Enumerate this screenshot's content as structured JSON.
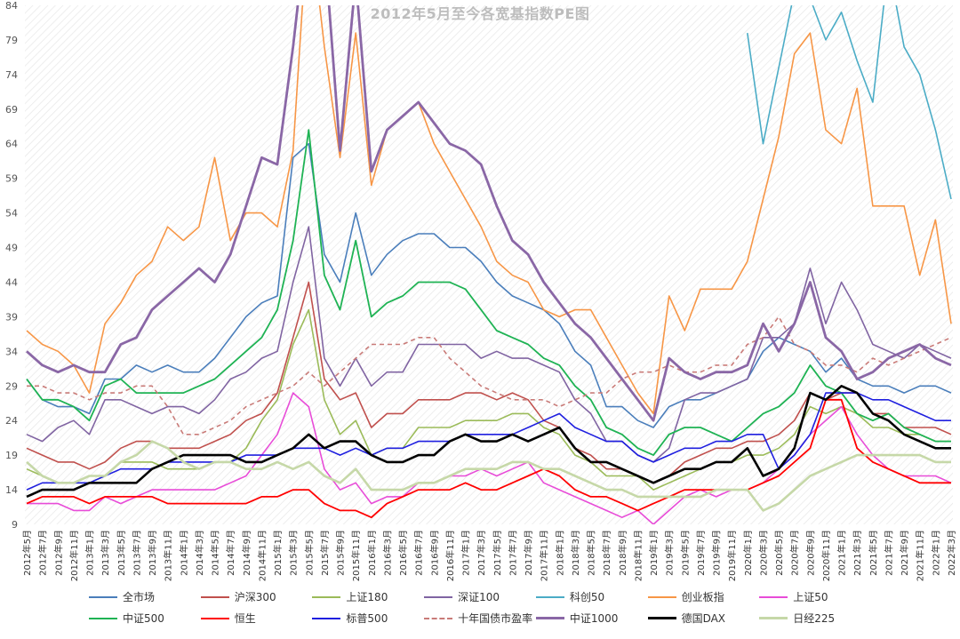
{
  "chart_data": {
    "type": "line",
    "title": "2012年5月至今各宽基指数PE图",
    "xlabel": "",
    "ylabel": "",
    "ylim": [
      9,
      84
    ],
    "yticks": [
      9,
      14,
      19,
      24,
      29,
      34,
      39,
      44,
      49,
      54,
      59,
      64,
      69,
      74,
      79,
      84
    ],
    "grid": "diagonal-hatch",
    "legend_position": "bottom",
    "x": [
      "2012年5月",
      "2012年7月",
      "2012年9月",
      "2012年11月",
      "2013年1月",
      "2013年3月",
      "2013年5月",
      "2013年7月",
      "2013年9月",
      "2013年11月",
      "2014年1月",
      "2014年3月",
      "2014年5月",
      "2014年7月",
      "2014年9月",
      "2014年11月",
      "2015年1月",
      "2015年3月",
      "2015年5月",
      "2015年7月",
      "2015年9月",
      "2015年11月",
      "2016年1月",
      "2016年3月",
      "2016年5月",
      "2016年7月",
      "2016年9月",
      "2016年11月",
      "2017年1月",
      "2017年3月",
      "2017年5月",
      "2017年7月",
      "2017年9月",
      "2017年11月",
      "2018年1月",
      "2018年3月",
      "2018年5月",
      "2018年7月",
      "2018年9月",
      "2018年11月",
      "2019年1月",
      "2019年3月",
      "2019年5月",
      "2019年7月",
      "2019年9月",
      "2019年11月",
      "2020年1月",
      "2020年3月",
      "2020年5月",
      "2020年7月",
      "2020年9月",
      "2020年11月",
      "2021年1月",
      "2021年3月",
      "2021年5月",
      "2021年7月",
      "2021年9月",
      "2021年11月",
      "2022年1月",
      "2022年3月"
    ],
    "series": [
      {
        "name": "全市场",
        "color": "#4a7ebb",
        "width": 1.6,
        "dash": "",
        "values": [
          30,
          27,
          26,
          26,
          25,
          30,
          30,
          32,
          31,
          32,
          31,
          31,
          33,
          36,
          39,
          41,
          42,
          62,
          64,
          48,
          44,
          54,
          45,
          48,
          50,
          51,
          51,
          49,
          49,
          47,
          44,
          42,
          41,
          40,
          38,
          34,
          32,
          26,
          26,
          24,
          23,
          26,
          27,
          27,
          28,
          29,
          30,
          34,
          36,
          35,
          34,
          31,
          33,
          30,
          29,
          29,
          28,
          29,
          29,
          28
        ]
      },
      {
        "name": "沪深300",
        "color": "#c0504d",
        "width": 1.6,
        "dash": "",
        "values": [
          20,
          19,
          18,
          18,
          17,
          18,
          20,
          21,
          21,
          20,
          20,
          20,
          21,
          22,
          24,
          25,
          28,
          36,
          44,
          30,
          27,
          28,
          23,
          25,
          25,
          27,
          27,
          27,
          28,
          28,
          27,
          28,
          27,
          24,
          23,
          20,
          19,
          17,
          17,
          16,
          15,
          16,
          18,
          19,
          20,
          20,
          21,
          21,
          22,
          24,
          28,
          27,
          28,
          28,
          25,
          25,
          23,
          23,
          23,
          22
        ]
      },
      {
        "name": "上证180",
        "color": "#9bbb59",
        "width": 1.6,
        "dash": "",
        "values": [
          17,
          16,
          15,
          15,
          15,
          16,
          18,
          18,
          18,
          17,
          17,
          17,
          18,
          18,
          20,
          24,
          27,
          35,
          40,
          27,
          22,
          24,
          19,
          20,
          20,
          23,
          23,
          23,
          24,
          24,
          24,
          25,
          25,
          23,
          22,
          19,
          18,
          16,
          16,
          16,
          14,
          15,
          16,
          17,
          18,
          18,
          19,
          19,
          20,
          22,
          26,
          25,
          26,
          25,
          23,
          23,
          22,
          22,
          21,
          21
        ]
      },
      {
        "name": "深证100",
        "color": "#8064a2",
        "width": 1.6,
        "dash": "",
        "values": [
          22,
          21,
          23,
          24,
          22,
          27,
          27,
          26,
          25,
          26,
          26,
          25,
          27,
          30,
          31,
          33,
          34,
          44,
          52,
          33,
          29,
          33,
          29,
          31,
          31,
          35,
          35,
          35,
          35,
          33,
          34,
          33,
          33,
          32,
          31,
          27,
          25,
          21,
          21,
          19,
          18,
          20,
          27,
          28,
          28,
          29,
          30,
          36,
          36,
          38,
          46,
          38,
          44,
          40,
          35,
          34,
          33,
          35,
          34,
          33
        ]
      },
      {
        "name": "科创50",
        "color": "#4bacc6",
        "width": 1.6,
        "dash": "",
        "values": [
          null,
          null,
          null,
          null,
          null,
          null,
          null,
          null,
          null,
          null,
          null,
          null,
          null,
          null,
          null,
          null,
          null,
          null,
          null,
          null,
          null,
          null,
          null,
          null,
          null,
          null,
          null,
          null,
          null,
          null,
          null,
          null,
          null,
          null,
          null,
          null,
          null,
          null,
          null,
          null,
          null,
          null,
          null,
          null,
          null,
          null,
          80,
          64,
          75,
          86,
          85,
          79,
          83,
          76,
          70,
          90,
          78,
          74,
          66,
          56
        ]
      },
      {
        "name": "创业板指",
        "color": "#f79646",
        "width": 1.6,
        "dash": "",
        "values": [
          37,
          35,
          34,
          32,
          28,
          38,
          41,
          45,
          47,
          52,
          50,
          52,
          62,
          50,
          54,
          54,
          52,
          63,
          98,
          78,
          62,
          80,
          58,
          66,
          68,
          70,
          64,
          60,
          56,
          52,
          47,
          45,
          44,
          40,
          39,
          40,
          40,
          36,
          32,
          28,
          25,
          42,
          37,
          43,
          43,
          43,
          47,
          56,
          65,
          77,
          80,
          66,
          64,
          72,
          55,
          55,
          55,
          45,
          53,
          38
        ]
      },
      {
        "name": "上证50",
        "color": "#e84cd8",
        "width": 1.6,
        "dash": "",
        "values": [
          12,
          12,
          12,
          11,
          11,
          13,
          12,
          13,
          14,
          14,
          14,
          14,
          14,
          15,
          16,
          19,
          22,
          28,
          26,
          17,
          14,
          15,
          12,
          13,
          13,
          15,
          15,
          16,
          16,
          17,
          16,
          17,
          18,
          15,
          14,
          13,
          12,
          11,
          10,
          11,
          9,
          11,
          13,
          14,
          13,
          14,
          14,
          15,
          17,
          19,
          22,
          24,
          26,
          22,
          19,
          17,
          16,
          16,
          16,
          15
        ]
      },
      {
        "name": "中证500",
        "color": "#1fb354",
        "width": 1.8,
        "dash": "",
        "values": [
          30,
          27,
          27,
          26,
          24,
          29,
          30,
          28,
          28,
          28,
          28,
          29,
          30,
          32,
          34,
          36,
          40,
          50,
          66,
          45,
          40,
          50,
          39,
          41,
          42,
          44,
          44,
          44,
          43,
          40,
          37,
          36,
          35,
          33,
          32,
          29,
          27,
          23,
          22,
          20,
          19,
          22,
          23,
          23,
          22,
          21,
          23,
          25,
          26,
          28,
          32,
          29,
          28,
          25,
          24,
          25,
          23,
          22,
          21,
          21
        ]
      },
      {
        "name": "恒生",
        "color": "#ff0000",
        "width": 1.8,
        "dash": "",
        "values": [
          12,
          13,
          13,
          13,
          12,
          13,
          13,
          13,
          13,
          12,
          12,
          12,
          12,
          12,
          12,
          13,
          13,
          14,
          14,
          12,
          11,
          11,
          10,
          12,
          13,
          14,
          14,
          14,
          15,
          14,
          14,
          15,
          16,
          17,
          16,
          14,
          13,
          13,
          12,
          11,
          12,
          13,
          14,
          14,
          14,
          14,
          14,
          15,
          16,
          18,
          20,
          27,
          27,
          20,
          18,
          17,
          16,
          15,
          15,
          15
        ]
      },
      {
        "name": "标普500",
        "color": "#1f1fdf",
        "width": 1.6,
        "dash": "",
        "values": [
          14,
          15,
          15,
          15,
          15,
          16,
          17,
          17,
          17,
          18,
          18,
          18,
          18,
          18,
          19,
          19,
          19,
          20,
          20,
          20,
          19,
          20,
          19,
          20,
          20,
          21,
          21,
          21,
          22,
          22,
          22,
          22,
          23,
          24,
          25,
          23,
          22,
          21,
          21,
          19,
          18,
          19,
          20,
          20,
          21,
          21,
          22,
          22,
          17,
          19,
          22,
          28,
          28,
          28,
          27,
          27,
          26,
          25,
          24,
          24
        ]
      },
      {
        "name": "十年国债市盈率",
        "color": "#c97b78",
        "width": 1.6,
        "dash": "5,4",
        "values": [
          29,
          29,
          28,
          28,
          27,
          28,
          28,
          29,
          29,
          26,
          22,
          22,
          23,
          24,
          26,
          27,
          28,
          29,
          31,
          29,
          31,
          33,
          35,
          35,
          35,
          36,
          36,
          33,
          31,
          29,
          28,
          27,
          27,
          27,
          26,
          27,
          28,
          28,
          30,
          31,
          31,
          32,
          31,
          31,
          32,
          32,
          35,
          36,
          39,
          35,
          34,
          32,
          32,
          31,
          33,
          32,
          33,
          34,
          35,
          36
        ]
      },
      {
        "name": "中证1000",
        "color": "#8a67a6",
        "width": 2.8,
        "dash": "",
        "values": [
          34,
          32,
          31,
          32,
          31,
          31,
          35,
          36,
          40,
          42,
          44,
          46,
          44,
          48,
          55,
          62,
          61,
          78,
          98,
          93,
          63,
          88,
          60,
          66,
          68,
          70,
          67,
          64,
          63,
          61,
          55,
          50,
          48,
          44,
          41,
          38,
          36,
          33,
          30,
          27,
          24,
          33,
          31,
          30,
          31,
          31,
          32,
          38,
          34,
          38,
          44,
          36,
          34,
          30,
          31,
          33,
          34,
          35,
          33,
          32
        ]
      },
      {
        "name": "德国DAX",
        "color": "#000000",
        "width": 2.6,
        "dash": "",
        "values": [
          13,
          14,
          14,
          14,
          15,
          15,
          15,
          15,
          17,
          18,
          19,
          19,
          19,
          19,
          18,
          18,
          19,
          20,
          22,
          20,
          21,
          21,
          19,
          18,
          18,
          19,
          19,
          21,
          22,
          21,
          21,
          22,
          21,
          22,
          23,
          20,
          18,
          18,
          17,
          16,
          15,
          16,
          17,
          17,
          18,
          18,
          20,
          16,
          17,
          20,
          28,
          27,
          29,
          28,
          25,
          24,
          22,
          21,
          20,
          20
        ]
      },
      {
        "name": "日经225",
        "color": "#c6d8a8",
        "width": 2.6,
        "dash": "",
        "values": [
          18,
          16,
          15,
          15,
          16,
          16,
          18,
          19,
          21,
          20,
          18,
          17,
          18,
          18,
          17,
          17,
          18,
          17,
          18,
          16,
          15,
          17,
          14,
          14,
          14,
          15,
          15,
          16,
          17,
          17,
          17,
          18,
          18,
          17,
          17,
          16,
          15,
          14,
          14,
          13,
          13,
          13,
          13,
          13,
          14,
          14,
          14,
          11,
          12,
          14,
          16,
          17,
          18,
          19,
          19,
          19,
          19,
          19,
          18,
          18
        ]
      }
    ]
  }
}
